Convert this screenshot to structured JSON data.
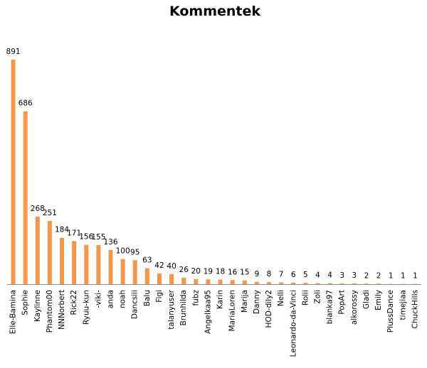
{
  "chart_data": {
    "type": "bar",
    "title": "Kommentek",
    "xlabel": "",
    "ylabel": "",
    "ylim": [
      0,
      891
    ],
    "grid": false,
    "legend": "none",
    "bar_color": "#F79646",
    "axis_color": "#868686",
    "categories": [
      "Elle-Bamina",
      "Sophie",
      "Kaylinne",
      "Phantom00",
      "NNNorbert",
      "Rick22",
      "Ryuu-kun",
      "-viki-",
      "anda",
      "noah",
      "Dancsiii",
      "Balu",
      "Figi",
      "talanyuser",
      "Brunhilda",
      "fubz",
      "Angelkaa95",
      "Karin",
      "MariaLoren",
      "Marija",
      "Danny",
      "HOD-dily2",
      "Nelli",
      "Leonardo-da-Vinci",
      "Rolii",
      "Zoli",
      "blanka97",
      "PopArt",
      "alkorossy",
      "Gladi",
      "Emily",
      "PlussDance",
      "timejiaa",
      "ChuckHills"
    ],
    "values": [
      891,
      686,
      268,
      251,
      184,
      171,
      156,
      155,
      136,
      100,
      95,
      63,
      42,
      40,
      26,
      20,
      19,
      18,
      16,
      15,
      9,
      8,
      7,
      6,
      5,
      4,
      4,
      3,
      3,
      2,
      2,
      1,
      1,
      1
    ]
  }
}
